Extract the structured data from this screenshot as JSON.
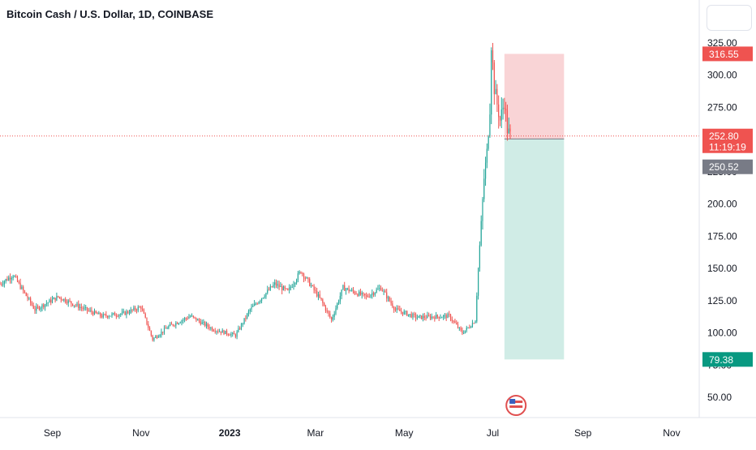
{
  "header": {
    "title": "Bitcoin Cash / U.S. Dollar, 1D, COINBASE"
  },
  "colors": {
    "up": "#26a69a",
    "down": "#ef5350",
    "stop_zone": "#f7c6c8",
    "target_zone": "#c8e9e2",
    "price_line": "#ef5350",
    "badge_stop": "#ef5350",
    "badge_price": "#ef5350",
    "badge_entry": "#787b86",
    "badge_target": "#089981"
  },
  "icons": {
    "event_marker": "us-flag-icon"
  },
  "chart_data": {
    "type": "candlestick",
    "title": "Bitcoin Cash / U.S. Dollar, 1D, COINBASE",
    "ylim": [
      30,
      340
    ],
    "y_ticks": [
      50,
      75,
      100,
      125,
      150,
      175,
      200,
      225,
      250,
      275,
      300,
      325
    ],
    "y_tick_labels": [
      "50.00",
      "75.00",
      "100.00",
      "125.00",
      "150.00",
      "175.00",
      "200.00",
      "225.00",
      "250.00",
      "275.00",
      "300.00",
      "325.00"
    ],
    "x_range": [
      "2022-07-27",
      "2023-11-20"
    ],
    "x_ticks": [
      {
        "date": "2022-09-01",
        "label": "Sep",
        "bold": false
      },
      {
        "date": "2022-11-01",
        "label": "Nov",
        "bold": false
      },
      {
        "date": "2023-01-01",
        "label": "2023",
        "bold": true
      },
      {
        "date": "2023-03-01",
        "label": "Mar",
        "bold": false
      },
      {
        "date": "2023-05-01",
        "label": "May",
        "bold": false
      },
      {
        "date": "2023-07-01",
        "label": "Jul",
        "bold": false
      },
      {
        "date": "2023-09-01",
        "label": "Sep",
        "bold": false
      },
      {
        "date": "2023-11-01",
        "label": "Nov",
        "bold": false
      }
    ],
    "anchors": [
      {
        "date": "2022-07-27",
        "close": 138
      },
      {
        "date": "2022-08-05",
        "close": 145
      },
      {
        "date": "2022-08-20",
        "close": 118
      },
      {
        "date": "2022-09-05",
        "close": 128
      },
      {
        "date": "2022-09-20",
        "close": 120
      },
      {
        "date": "2022-10-05",
        "close": 113
      },
      {
        "date": "2022-10-20",
        "close": 115
      },
      {
        "date": "2022-11-01",
        "close": 120
      },
      {
        "date": "2022-11-09",
        "close": 95
      },
      {
        "date": "2022-11-20",
        "close": 105
      },
      {
        "date": "2022-12-05",
        "close": 113
      },
      {
        "date": "2022-12-20",
        "close": 103
      },
      {
        "date": "2023-01-05",
        "close": 98
      },
      {
        "date": "2023-01-15",
        "close": 118
      },
      {
        "date": "2023-02-01",
        "close": 138
      },
      {
        "date": "2023-02-10",
        "close": 132
      },
      {
        "date": "2023-02-19",
        "close": 148
      },
      {
        "date": "2023-03-05",
        "close": 125
      },
      {
        "date": "2023-03-12",
        "close": 110
      },
      {
        "date": "2023-03-20",
        "close": 135
      },
      {
        "date": "2023-04-05",
        "close": 128
      },
      {
        "date": "2023-04-15",
        "close": 135
      },
      {
        "date": "2023-04-25",
        "close": 118
      },
      {
        "date": "2023-05-10",
        "close": 112
      },
      {
        "date": "2023-06-01",
        "close": 113
      },
      {
        "date": "2023-06-10",
        "close": 100
      },
      {
        "date": "2023-06-15",
        "close": 105
      },
      {
        "date": "2023-06-19",
        "close": 110
      },
      {
        "date": "2023-06-21",
        "close": 150
      },
      {
        "date": "2023-06-23",
        "close": 185
      },
      {
        "date": "2023-06-25",
        "close": 220
      },
      {
        "date": "2023-06-27",
        "close": 240
      },
      {
        "date": "2023-06-29",
        "close": 275
      },
      {
        "date": "2023-06-30",
        "close": 325
      },
      {
        "date": "2023-07-02",
        "close": 290
      },
      {
        "date": "2023-07-06",
        "close": 265
      },
      {
        "date": "2023-07-09",
        "close": 280
      },
      {
        "date": "2023-07-11",
        "close": 258
      },
      {
        "date": "2023-07-13",
        "close": 252.8
      }
    ],
    "current_price": 252.8,
    "position": {
      "start_date": "2023-07-09",
      "end_date": "2023-08-19",
      "entry": 250.52,
      "stop": 316.55,
      "target": 79.38
    },
    "price_badges": [
      {
        "role": "stop",
        "value": "316.55",
        "y": 316.55
      },
      {
        "role": "price",
        "value": "252.80",
        "extra": "11:19:19",
        "y": 252.8
      },
      {
        "role": "entry",
        "value": "250.52",
        "y": 250.52
      },
      {
        "role": "target",
        "value": "79.38",
        "y": 79.38
      }
    ],
    "event_date": "2023-07-17"
  }
}
